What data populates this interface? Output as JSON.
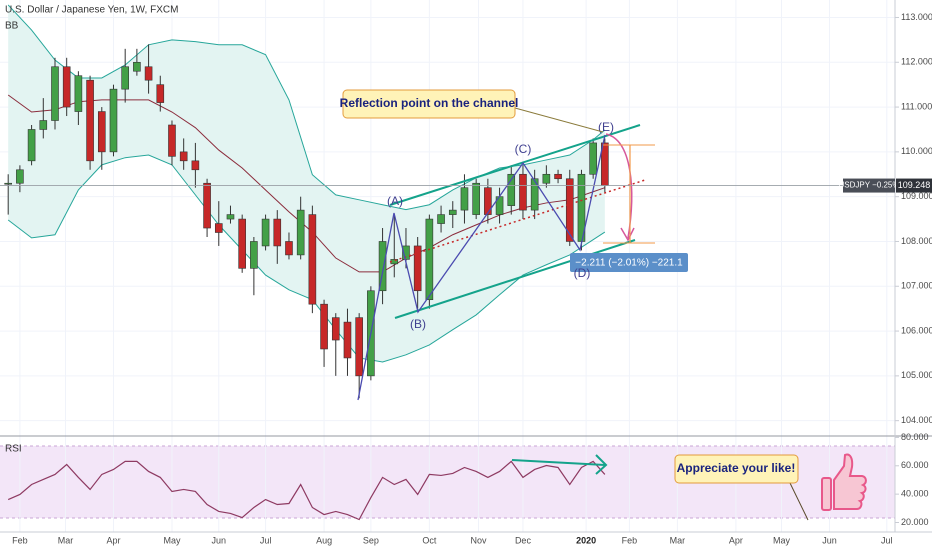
{
  "chart_data": {
    "type": "candlestick",
    "title": "U.S. Dollar / Japanese Yen, 1W, FXCM",
    "indicator_label": "BB",
    "rsi_label": "RSI",
    "up_color": "#43a047",
    "down_color": "#c62828",
    "open": [
      109.3,
      109.3,
      109.8,
      110.5,
      110.7,
      111.9,
      110.9,
      111.6,
      110.9,
      110.0,
      111.4,
      111.8,
      111.9,
      111.5,
      110.6,
      110.0,
      109.8,
      109.3,
      108.4,
      108.5,
      108.5,
      107.4,
      107.9,
      108.5,
      108.0,
      107.7,
      108.6,
      106.6,
      106.3,
      106.2,
      106.3,
      105.0,
      106.9,
      107.5,
      107.6,
      107.9,
      106.7,
      108.4,
      108.6,
      108.7,
      108.6,
      109.2,
      108.6,
      108.8,
      109.5,
      108.7,
      109.3,
      109.5,
      109.4,
      108.0,
      109.5,
      110.2
    ],
    "high": [
      109.5,
      109.7,
      110.6,
      111.2,
      112.1,
      112.1,
      111.8,
      111.7,
      111.0,
      111.5,
      112.3,
      112.3,
      112.4,
      111.7,
      110.7,
      110.3,
      110.2,
      109.4,
      108.9,
      108.8,
      108.6,
      108.1,
      108.6,
      108.7,
      108.2,
      109.0,
      108.8,
      106.7,
      106.4,
      106.5,
      106.4,
      107.0,
      108.3,
      108.6,
      108.3,
      108.1,
      108.6,
      108.8,
      108.9,
      109.5,
      109.4,
      109.4,
      109.2,
      109.7,
      109.7,
      109.6,
      109.7,
      109.6,
      109.6,
      109.6,
      110.3,
      110.3
    ],
    "low": [
      108.6,
      109.1,
      109.7,
      110.3,
      110.5,
      110.8,
      110.6,
      109.6,
      109.6,
      109.9,
      111.1,
      111.7,
      111.3,
      110.9,
      109.7,
      109.6,
      109.2,
      108.1,
      107.9,
      108.4,
      107.3,
      106.8,
      107.8,
      107.5,
      107.6,
      107.6,
      106.4,
      105.2,
      105.0,
      105.0,
      104.5,
      104.9,
      106.6,
      107.2,
      107.4,
      106.5,
      106.5,
      108.2,
      108.3,
      108.4,
      108.5,
      108.4,
      108.4,
      108.6,
      108.5,
      108.5,
      109.2,
      109.3,
      107.9,
      107.8,
      109.4,
      109.1
    ],
    "close": [
      109.3,
      109.6,
      110.5,
      110.7,
      111.9,
      111.0,
      111.7,
      109.8,
      110.0,
      111.4,
      111.9,
      112.0,
      111.6,
      111.1,
      109.9,
      109.8,
      109.6,
      108.3,
      108.2,
      108.6,
      107.4,
      108.0,
      108.5,
      107.9,
      107.7,
      108.7,
      106.6,
      105.6,
      105.8,
      105.4,
      105.0,
      106.9,
      108.0,
      107.6,
      107.9,
      106.9,
      108.5,
      108.6,
      108.7,
      109.2,
      109.3,
      108.6,
      109.0,
      109.5,
      108.7,
      109.4,
      109.5,
      109.4,
      108.0,
      109.5,
      110.2,
      109.25
    ],
    "bands": {
      "x": [
        0,
        2,
        4,
        6,
        8,
        10,
        12,
        14,
        16,
        18,
        20,
        22,
        24,
        26,
        28,
        30,
        32,
        34,
        36,
        38,
        40,
        42,
        44,
        46,
        48,
        50,
        51
      ],
      "upper": [
        113.28,
        112.72,
        112.05,
        111.65,
        111.65,
        111.94,
        112.39,
        112.5,
        112.46,
        112.39,
        112.39,
        112.17,
        111.16,
        109.49,
        109.04,
        108.93,
        108.82,
        108.71,
        108.82,
        109.15,
        109.42,
        109.64,
        109.71,
        109.82,
        109.93,
        110.27,
        110.49
      ],
      "middle": [
        111.27,
        110.89,
        110.94,
        111.12,
        111.16,
        111.16,
        111.16,
        110.89,
        110.54,
        110.04,
        109.64,
        109.15,
        108.66,
        108.21,
        107.63,
        107.32,
        107.32,
        107.63,
        107.86,
        108.15,
        108.37,
        108.59,
        108.75,
        108.86,
        108.93,
        109.11,
        109.2
      ],
      "lower": [
        108.48,
        108.08,
        108.15,
        109.15,
        109.71,
        109.87,
        109.93,
        109.71,
        109.04,
        108.37,
        107.81,
        107.25,
        106.92,
        106.7,
        106.03,
        105.4,
        105.31,
        105.47,
        105.69,
        106.03,
        106.36,
        106.81,
        107.25,
        107.48,
        107.7,
        108.04,
        108.21
      ],
      "band_color": "#26a69a",
      "fill_color": "#e3f4f2",
      "middle_color": "#8b2c3c"
    },
    "rsi": {
      "values": [
        36.2,
        39.8,
        46.8,
        50.4,
        53.9,
        60.9,
        51.8,
        43.3,
        53.9,
        57.4,
        63.1,
        63.1,
        56.0,
        51.8,
        41.9,
        43.3,
        41.9,
        32.7,
        27.8,
        26.4,
        23.5,
        30.6,
        36.2,
        32.7,
        33.4,
        46.8,
        30.6,
        25.6,
        27.8,
        25.6,
        22.1,
        37.6,
        51.8,
        46.8,
        50.4,
        39.8,
        53.9,
        53.2,
        54.6,
        58.8,
        56.0,
        51.8,
        56.0,
        63.1,
        51.8,
        57.4,
        60.2,
        58.8,
        46.8,
        58.8,
        63.1,
        53.9
      ],
      "color": "#8e3a62",
      "ylim": [
        13.3,
        80.3
      ],
      "yticks": [
        {
          "value": 20,
          "label": "20.000"
        },
        {
          "value": 40,
          "label": "40.000"
        },
        {
          "value": 60,
          "label": "60.000"
        },
        {
          "value": 80,
          "label": "80.000"
        }
      ]
    },
    "xlim": [
      -0.7,
      75.8
    ],
    "xticks": [
      {
        "value": 1,
        "label": "Feb"
      },
      {
        "value": 4.9,
        "label": "Mar"
      },
      {
        "value": 9,
        "label": "Apr"
      },
      {
        "value": 14,
        "label": "May"
      },
      {
        "value": 18,
        "label": "Jun"
      },
      {
        "value": 22,
        "label": "Jul"
      },
      {
        "value": 27,
        "label": "Aug"
      },
      {
        "value": 31,
        "label": "Sep"
      },
      {
        "value": 36,
        "label": "Oct"
      },
      {
        "value": 40.2,
        "label": "Nov"
      },
      {
        "value": 44,
        "label": "Dec"
      },
      {
        "value": 49.4,
        "label": "2020"
      },
      {
        "value": 53.1,
        "label": "Feb"
      },
      {
        "value": 57.2,
        "label": "Mar"
      },
      {
        "value": 62.2,
        "label": "Apr"
      },
      {
        "value": 66.1,
        "label": "May"
      },
      {
        "value": 70.2,
        "label": "Jun"
      },
      {
        "value": 75.1,
        "label": "Jul"
      }
    ],
    "ylim": [
      103.68,
      113.39
    ],
    "yticks": [
      {
        "value": 104,
        "label": "104.000"
      },
      {
        "value": 105,
        "label": "105.000"
      },
      {
        "value": 106,
        "label": "106.000"
      },
      {
        "value": 107,
        "label": "107.000"
      },
      {
        "value": 108,
        "label": "108.000"
      },
      {
        "value": 109,
        "label": "109.000"
      },
      {
        "value": 110,
        "label": "110.000"
      },
      {
        "value": 111,
        "label": "111.000"
      },
      {
        "value": 112,
        "label": "112.000"
      },
      {
        "value": 113,
        "label": "113.000"
      }
    ],
    "grid": true,
    "last_price": 109.248,
    "symbol_label": "USDJPY −0.25%",
    "annotations": {
      "point_a": "(A)",
      "point_b": "(B)",
      "point_c": "(C)",
      "point_d": "(D)",
      "point_e": "(E)",
      "reflection": "Reflection point on the channel",
      "measure": "−2.211 (−2.01%) −221.1",
      "like": "Appreciate your like!"
    }
  }
}
